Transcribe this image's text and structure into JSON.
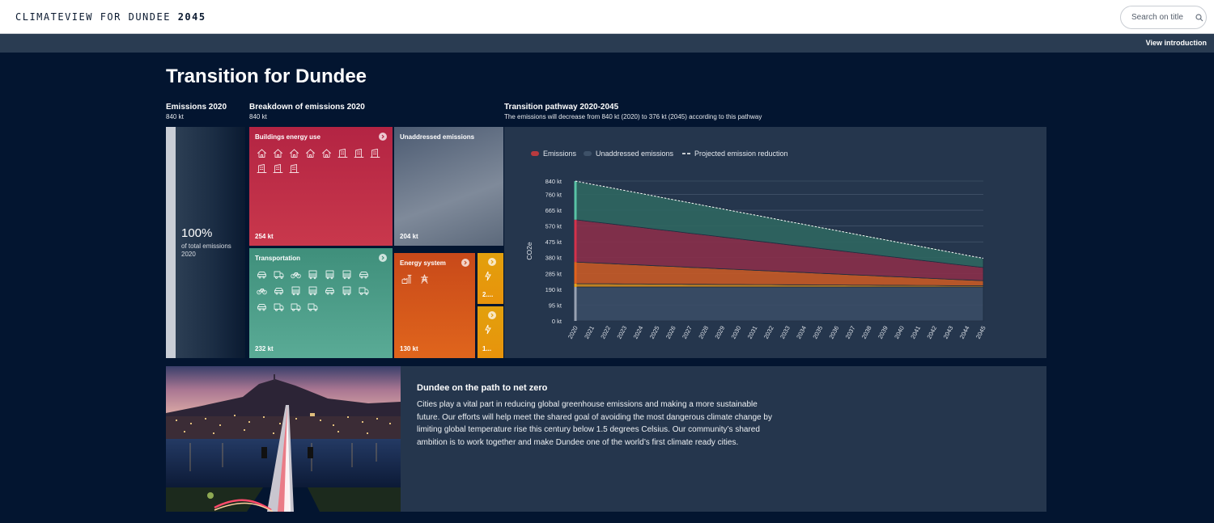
{
  "header": {
    "brand_prefix": "CLIMATEVIEW FOR DUNDEE",
    "brand_year": "2045",
    "search_placeholder": "Search on title",
    "view_intro": "View introduction"
  },
  "page": {
    "title": "Transition for Dundee"
  },
  "emissions_2020": {
    "heading": "Emissions 2020",
    "value": "840 kt",
    "percent": "100%",
    "caption": "of total emissions 2020"
  },
  "breakdown": {
    "heading": "Breakdown of emissions 2020",
    "value": "840 kt",
    "tiles": [
      {
        "label": "Buildings energy use",
        "value": "254 kt",
        "color": "#c02d44"
      },
      {
        "label": "Unaddressed emissions",
        "value": "204 kt",
        "color": "#5c6b80"
      },
      {
        "label": "Transportation",
        "value": "232 kt",
        "color": "#4a9e86"
      },
      {
        "label": "Energy system",
        "value": "130 kt",
        "color": "#d6521a"
      },
      {
        "label": "",
        "value": "2....",
        "color": "#e69a0c"
      },
      {
        "label": "",
        "value": "1...",
        "color": "#e69a0c"
      }
    ],
    "icons": {
      "buildings": [
        "house-icon",
        "house-icon",
        "house-icon",
        "house-icon",
        "house-icon",
        "office-icon",
        "office-icon",
        "office-icon",
        "office-icon",
        "office-icon",
        "office-icon"
      ],
      "transport": [
        "car-icon",
        "truck-icon",
        "bicycle-icon",
        "bus-icon",
        "bus-icon",
        "bus-icon",
        "car-icon",
        "bicycle-icon",
        "car-icon",
        "bus-icon",
        "bus-icon",
        "car-icon",
        "bus-icon",
        "truck-icon",
        "car-icon",
        "truck-icon",
        "truck-icon",
        "truck-icon"
      ],
      "energy": [
        "power-plant-icon",
        "power-line-icon"
      ]
    }
  },
  "pathway": {
    "heading": "Transition pathway 2020-2045",
    "subheading": "The emissions will decrease from 840 kt (2020) to 376 kt (2045) according to this pathway"
  },
  "chart_data": {
    "type": "area",
    "title": "Transition pathway 2020-2045",
    "ylabel": "CO2e",
    "xlabel": "",
    "x": [
      2020,
      2021,
      2022,
      2023,
      2024,
      2025,
      2026,
      2027,
      2028,
      2029,
      2030,
      2031,
      2032,
      2033,
      2034,
      2035,
      2036,
      2037,
      2038,
      2039,
      2040,
      2041,
      2042,
      2043,
      2044,
      2045
    ],
    "x_tick_labels": [
      "2020",
      "2021",
      "2022",
      "2023",
      "2024",
      "2025",
      "2026",
      "2027",
      "2028",
      "2029",
      "2030",
      "2031",
      "2032",
      "2033",
      "2034",
      "2035",
      "2036",
      "2037",
      "2038",
      "2039",
      "2040",
      "2041",
      "2042",
      "2043",
      "2044",
      "2045"
    ],
    "ylim": [
      0,
      840
    ],
    "y_ticks": [
      0,
      95,
      190,
      285,
      380,
      475,
      570,
      665,
      760,
      840
    ],
    "y_tick_labels": [
      "0 kt",
      "95 kt",
      "190 kt",
      "285 kt",
      "380 kt",
      "475 kt",
      "570 kt",
      "665 kt",
      "760 kt",
      "840 kt"
    ],
    "grid": true,
    "legend": [
      "Emissions",
      "Unaddressed emissions",
      "Projected emission reduction"
    ],
    "legend_colors": [
      "#b83a3e",
      "#3e5168",
      "#ffffff"
    ],
    "legend_position": "top-left",
    "series": [
      {
        "name": "Unaddressed emissions",
        "color": "#3a4d66",
        "values": [
          204,
          204,
          204,
          204,
          204,
          204,
          204,
          204,
          204,
          204,
          204,
          204,
          204,
          204,
          204,
          204,
          204,
          204,
          204,
          204,
          204,
          204,
          204,
          204,
          204,
          204
        ]
      },
      {
        "name": "Emissions",
        "color": "#d08a1d",
        "values": [
          20,
          19,
          19,
          18,
          18,
          17,
          17,
          16,
          16,
          15,
          15,
          14,
          14,
          13,
          13,
          12,
          12,
          11,
          11,
          10,
          10,
          9,
          9,
          8,
          8,
          8
        ]
      },
      {
        "name": "Emissions",
        "color": "#c85a26",
        "values": [
          130,
          126,
          122,
          118,
          114,
          110,
          106,
          102,
          98,
          94,
          90,
          86,
          82,
          78,
          74,
          70,
          66,
          62,
          58,
          54,
          50,
          46,
          42,
          38,
          34,
          30
        ]
      },
      {
        "name": "Emissions",
        "color": "#8a2f4a",
        "values": [
          254,
          247,
          240,
          233,
          226,
          219,
          212,
          205,
          198,
          191,
          184,
          177,
          170,
          163,
          156,
          149,
          142,
          135,
          128,
          121,
          114,
          107,
          100,
          93,
          86,
          79
        ]
      },
      {
        "name": "Emissions",
        "color": "#2f6660",
        "values": [
          232,
          226,
          220,
          213,
          207,
          200,
          193,
          186,
          179,
          172,
          165,
          158,
          151,
          144,
          137,
          130,
          123,
          116,
          109,
          102,
          95,
          88,
          81,
          72,
          64,
          55
        ]
      },
      {
        "name": "Projected emission reduction",
        "color": "#ffffff",
        "values": [
          840,
          821,
          803,
          784,
          766,
          747,
          728,
          710,
          691,
          673,
          654,
          636,
          617,
          598,
          580,
          561,
          543,
          524,
          505,
          487,
          468,
          450,
          431,
          413,
          394,
          376
        ]
      }
    ]
  },
  "story": {
    "title": "Dundee on the path to net zero",
    "body": "Cities play a vital part in reducing global greenhouse emissions and making a more sustainable future. Our efforts will help meet the shared goal of avoiding the most dangerous climate change by limiting global temperature rise this century below 1.5 degrees Celsius. Our community’s shared ambition is to work together and make Dundee one of the world’s first climate ready cities."
  }
}
